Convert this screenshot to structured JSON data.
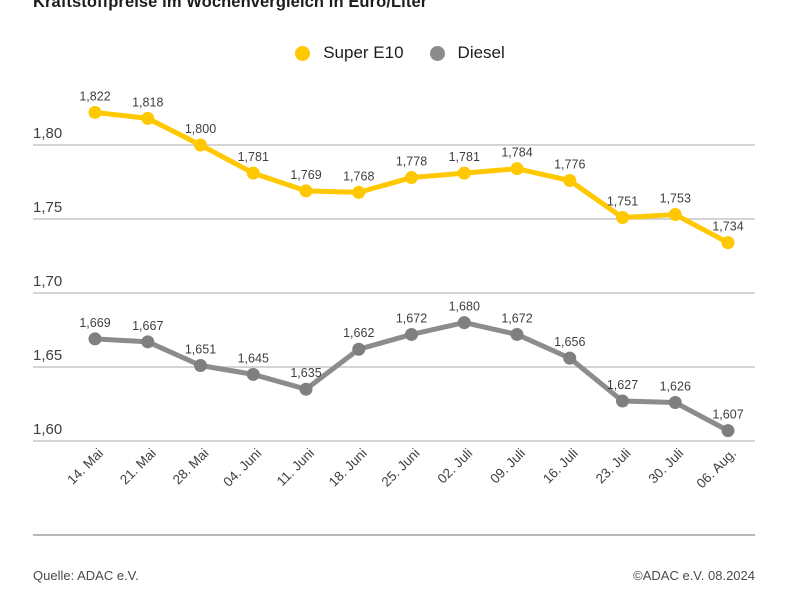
{
  "title": "Kraftstoffpreise im Wochenvergleich in Euro/Liter",
  "legend": [
    {
      "label": "Super E10",
      "color": "#FFC800"
    },
    {
      "label": "Diesel",
      "color": "#8C8C8C"
    }
  ],
  "footer": {
    "source_left": "Quelle: ADAC e.V.",
    "source_right": "©ADAC e.V. 08.2024"
  },
  "colors": {
    "super_e10": "#FFC800",
    "diesel_line": "#8C8C8C",
    "diesel_dot": "#7f7f7f",
    "gridline": "#c6c6c6",
    "axis_text": "#3f3f3f",
    "label_text": "#3f3f3f"
  },
  "chart_data": {
    "type": "line",
    "title": "Kraftstoffpreise im Wochenvergleich in Euro/Liter",
    "categories": [
      "14. Mai",
      "21. Mai",
      "28. Mai",
      "04. Juni",
      "11. Juni",
      "18. Juni",
      "25. Juni",
      "02. Juli",
      "09. Juli",
      "16. Juli",
      "23. Juli",
      "30. Juli",
      "06. Aug."
    ],
    "series": [
      {
        "name": "Super E10",
        "color": "#FFC800",
        "values": [
          1.822,
          1.818,
          1.8,
          1.781,
          1.769,
          1.768,
          1.778,
          1.781,
          1.784,
          1.776,
          1.751,
          1.753,
          1.734
        ]
      },
      {
        "name": "Diesel",
        "color": "#8C8C8C",
        "values": [
          1.669,
          1.667,
          1.651,
          1.645,
          1.635,
          1.662,
          1.672,
          1.68,
          1.672,
          1.656,
          1.627,
          1.626,
          1.607
        ]
      }
    ],
    "xlabel": "",
    "ylabel": "Euro/Liter",
    "ylim": [
      1.585,
      1.835
    ],
    "yticks": [
      1.8,
      1.75,
      1.7,
      1.65,
      1.6
    ],
    "ytick_labels": [
      "1,80",
      "1,75",
      "1,70",
      "1,65",
      "1,60"
    ],
    "grid": true,
    "legend_position": "top-center",
    "data_labels": true,
    "decimal_separator": ","
  }
}
